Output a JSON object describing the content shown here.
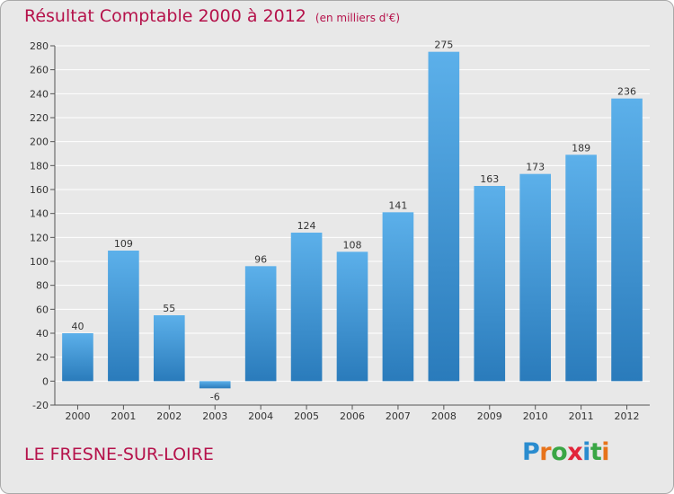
{
  "title": "Résultat Comptable 2000 à 2012",
  "subtitle": "(en milliers d'€)",
  "commune": "LE FRESNE-SUR-LOIRE",
  "logo": {
    "letters": [
      "P",
      "r",
      "o",
      "x",
      "i",
      "t",
      "i"
    ],
    "colors": [
      "#2a8ccf",
      "#e7731a",
      "#3aa645",
      "#e2253a",
      "#2a8ccf",
      "#3aa645",
      "#e7731a"
    ]
  },
  "colors": {
    "title": "#b5114a",
    "bar_top": "#5cb0ea",
    "bar_bottom": "#2a7bbb",
    "grid": "#ffffff",
    "background": "#e8e8e8"
  },
  "chart_data": {
    "type": "bar",
    "title": "Résultat Comptable 2000 à 2012",
    "subtitle": "(en milliers d'€)",
    "categories": [
      "2000",
      "2001",
      "2002",
      "2003",
      "2004",
      "2005",
      "2006",
      "2007",
      "2008",
      "2009",
      "2010",
      "2011",
      "2012"
    ],
    "values": [
      40,
      109,
      55,
      -6,
      96,
      124,
      108,
      141,
      275,
      163,
      173,
      189,
      236
    ],
    "labels": [
      "40",
      "109",
      "55",
      "-6",
      "96",
      "124",
      "108",
      "141",
      "275",
      "163",
      "173",
      "189",
      "236"
    ],
    "ylim": [
      -20,
      280
    ],
    "yticks": [
      -20,
      0,
      20,
      40,
      60,
      80,
      100,
      120,
      140,
      160,
      180,
      200,
      220,
      240,
      260,
      280
    ],
    "xlabel": "",
    "ylabel": "",
    "grid": true
  }
}
